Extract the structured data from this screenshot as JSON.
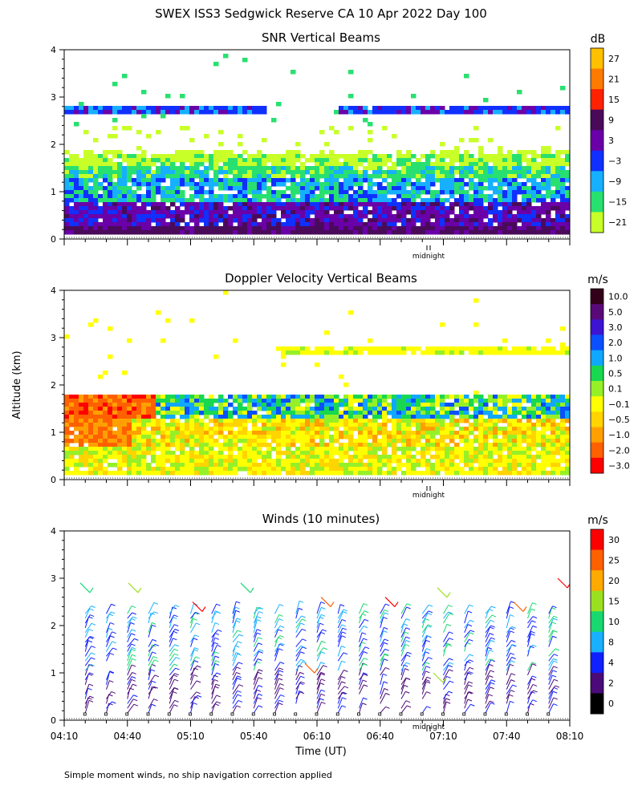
{
  "figure": {
    "title": "SWEX ISS3 Sedgwick Reserve CA  10 Apr 2022 Day 100",
    "ylabel": "Altitude (km)",
    "xlabel": "Time (UT)",
    "footnote": "Simple moment winds, no ship navigation correction applied",
    "midnight_label": "midnight"
  },
  "chart_data": [
    {
      "type": "heatmap",
      "title": "SNR Vertical Beams",
      "unit": "dB",
      "ylim": [
        0,
        4
      ],
      "yticks": [
        "0",
        "1",
        "2",
        "3",
        "4"
      ],
      "xlim_hours": [
        4.1667,
        8.1667
      ],
      "colorbar": {
        "labels": [
          "27",
          "21",
          "15",
          "9",
          "3",
          "−3",
          "−9",
          "−15",
          "−21"
        ],
        "colors": [
          "#ffc000",
          "#ff7b00",
          "#ff2200",
          "#4a0a5a",
          "#6a00a8",
          "#1030ff",
          "#16b0ff",
          "#28e070",
          "#c8ff28"
        ]
      },
      "layers": [
        {
          "from_km": 0.15,
          "to_km": 0.4,
          "value_db": 9
        },
        {
          "from_km": 0.4,
          "to_km": 0.9,
          "value_db": 3
        },
        {
          "from_km": 0.9,
          "to_km": 1.6,
          "value_db": -9
        },
        {
          "from_km": 1.6,
          "to_km": 1.9,
          "value_db": -15
        },
        {
          "from_km": 2.7,
          "to_km": 2.85,
          "value_db": -3
        }
      ]
    },
    {
      "type": "heatmap",
      "title": "Doppler Velocity Vertical Beams",
      "unit": "m/s",
      "ylim": [
        0,
        4
      ],
      "yticks": [
        "0",
        "1",
        "2",
        "3",
        "4"
      ],
      "xlim_hours": [
        4.1667,
        8.1667
      ],
      "colorbar": {
        "labels": [
          "10.0",
          "5.0",
          "3.0",
          "2.0",
          "1.0",
          "0.5",
          "0.1",
          "−0.1",
          "−0.5",
          "−1.0",
          "−2.0",
          "−3.0"
        ],
        "colors": [
          "#33001a",
          "#5a0a78",
          "#3c14d2",
          "#0a50ff",
          "#10a8ff",
          "#18d850",
          "#96f028",
          "#ffff00",
          "#ffd400",
          "#ffa000",
          "#ff6000",
          "#ff0000"
        ]
      },
      "layers": [
        {
          "from_km": 0.15,
          "to_km": 0.7,
          "value_ms": -0.1
        },
        {
          "from_km": 0.7,
          "to_km": 1.3,
          "value_ms": -0.5
        },
        {
          "from_km": 1.3,
          "to_km": 1.8,
          "value_ms": 0.5
        },
        {
          "from_km": 2.7,
          "to_km": 2.85,
          "value_ms": -0.1
        }
      ]
    },
    {
      "type": "scatter",
      "title": "Winds (10 minutes)",
      "unit": "m/s",
      "ylim": [
        0,
        4
      ],
      "yticks": [
        "0",
        "1",
        "2",
        "3",
        "4"
      ],
      "xlim_hours": [
        4.1667,
        8.1667
      ],
      "xticks": [
        "04:10",
        "04:40",
        "05:10",
        "05:40",
        "06:10",
        "06:40",
        "07:10",
        "07:40",
        "08:10"
      ],
      "colorbar": {
        "labels": [
          "30",
          "25",
          "20",
          "15",
          "10",
          "8",
          "4",
          "2",
          "0"
        ],
        "colors": [
          "#ff0000",
          "#ff6000",
          "#ffaa00",
          "#9be020",
          "#18d870",
          "#18b0ff",
          "#1020ff",
          "#4a0a78",
          "#000000"
        ]
      },
      "profile_times": [
        "04:20",
        "04:30",
        "04:40",
        "04:50",
        "05:00",
        "05:10",
        "05:20",
        "05:30",
        "05:40",
        "05:50",
        "06:00",
        "06:10",
        "06:20",
        "06:30",
        "06:40",
        "06:50",
        "07:00",
        "07:10",
        "07:20",
        "07:30",
        "07:40",
        "07:50",
        "08:00"
      ]
    }
  ]
}
